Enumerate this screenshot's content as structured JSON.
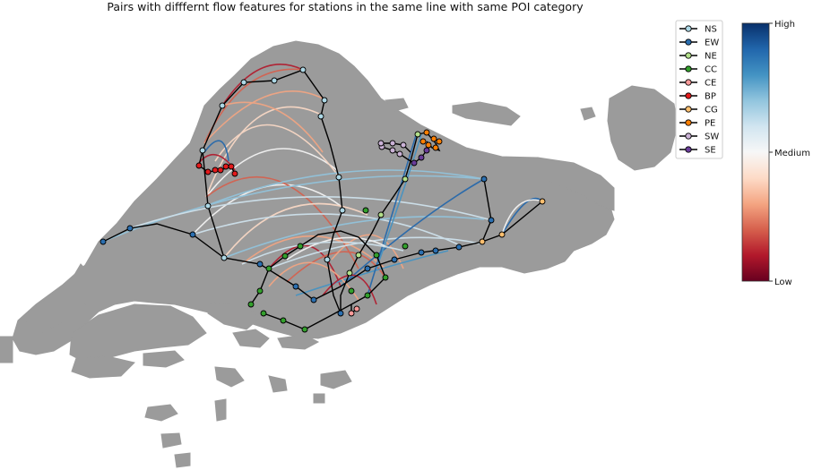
{
  "title": "Pairs with difffernt flow features for stations in the same line with same POI category",
  "legend": {
    "items": [
      {
        "label": "NS",
        "color": "#add8e6"
      },
      {
        "label": "EW",
        "color": "#2b6fb0"
      },
      {
        "label": "NE",
        "color": "#b2df8a"
      },
      {
        "label": "CC",
        "color": "#33a02c"
      },
      {
        "label": "CE",
        "color": "#fb9a99"
      },
      {
        "label": "BP",
        "color": "#e31a1c"
      },
      {
        "label": "CG",
        "color": "#fdbf6f"
      },
      {
        "label": "PE",
        "color": "#ff7f00"
      },
      {
        "label": "SW",
        "color": "#cab2d6"
      },
      {
        "label": "SE",
        "color": "#6a3d9a"
      }
    ]
  },
  "colorbar": {
    "high_label": "High",
    "medium_label": "Medium",
    "low_label": "Low",
    "colors": [
      "#08306b",
      "#2166ac",
      "#4393c3",
      "#92c5de",
      "#d1e5f0",
      "#f7f7f7",
      "#fddbc7",
      "#f4a582",
      "#d6604d",
      "#b2182b",
      "#67001f"
    ]
  },
  "colors": {
    "land": "#9b9b9b",
    "rail_line": "#000000"
  }
}
